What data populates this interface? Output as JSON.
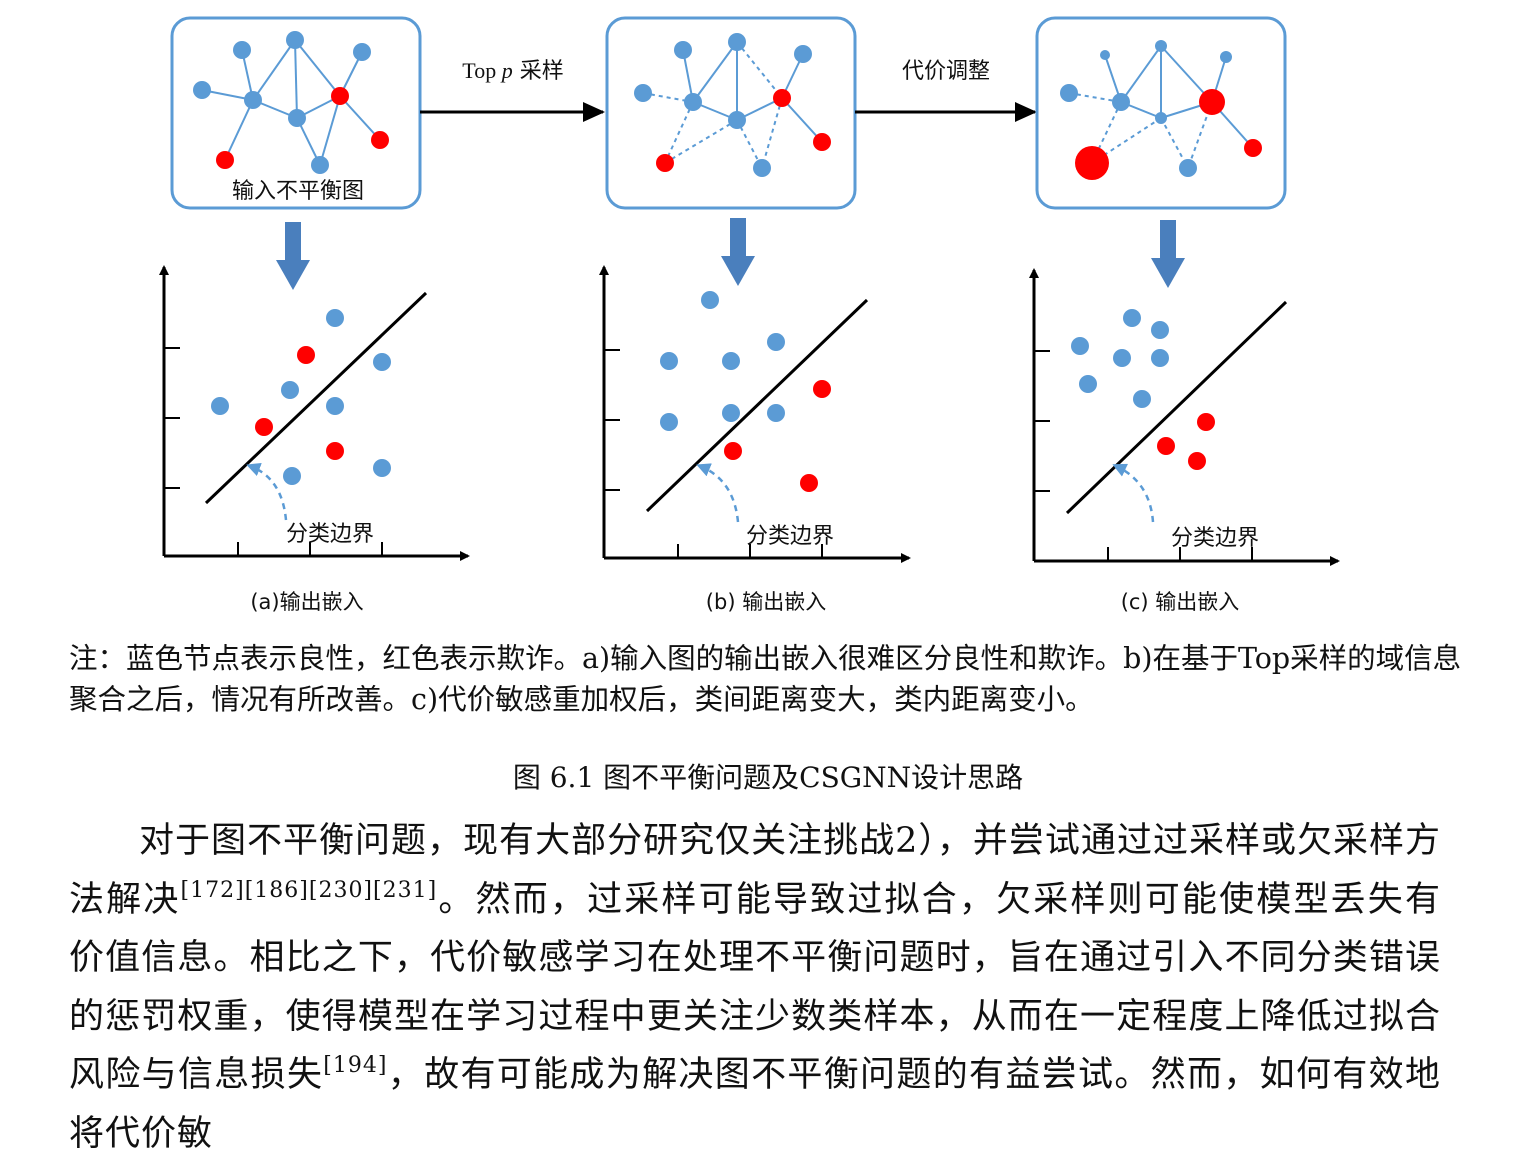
{
  "figure": {
    "panels": [
      {
        "id": "a",
        "graph_label": "输入不平衡图",
        "embed_label": "(a)输出嵌入",
        "boundary_label": "分类边界"
      },
      {
        "id": "b",
        "graph_label": "",
        "embed_label": "(b) 输出嵌入",
        "boundary_label": "分类边界"
      },
      {
        "id": "c",
        "graph_label": "",
        "embed_label": "(c) 输出嵌入",
        "boundary_label": "分类边界"
      }
    ],
    "arrow1": {
      "prefix": "Top ",
      "var": "p",
      "suffix": " 采样"
    },
    "arrow2": "代价调整",
    "colors": {
      "blue_node": "#5b9bd5",
      "red_node": "#ff0000",
      "box_border": "#5b9bd5",
      "down_arrow": "#4a7fbd"
    }
  },
  "note": "注：蓝色节点表示良性，红色表示欺诈。a)输入图的输出嵌入很难区分良性和欺诈。b)在基于Top采样的域信息聚合之后，情况有所改善。c)代价敏感重加权后，类间距离变大，类内距离变小。",
  "caption": "图 6.1 图不平衡问题及CSGNN设计思路",
  "body": {
    "p1": "对于图不平衡问题，现有大部分研究仅关注挑战2），并尝试通过过采样或欠采样方法解决",
    "ref1": "[172][186][230][231]",
    "p2": "。然而，过采样可能导致过拟合，欠采样则可能使模型丢失有价值信息。相比之下，代价敏感学习在处理不平衡问题时，旨在通过引入不同分类错误的惩罚权重，使得模型在学习过程中更关注少数类样本，从而在一定程度上降低过拟合风险与信息损失",
    "ref2": "[194]",
    "p3": "，故有可能成为解决图不平衡问题的有益尝试。然而，如何有效地将代价敏"
  }
}
